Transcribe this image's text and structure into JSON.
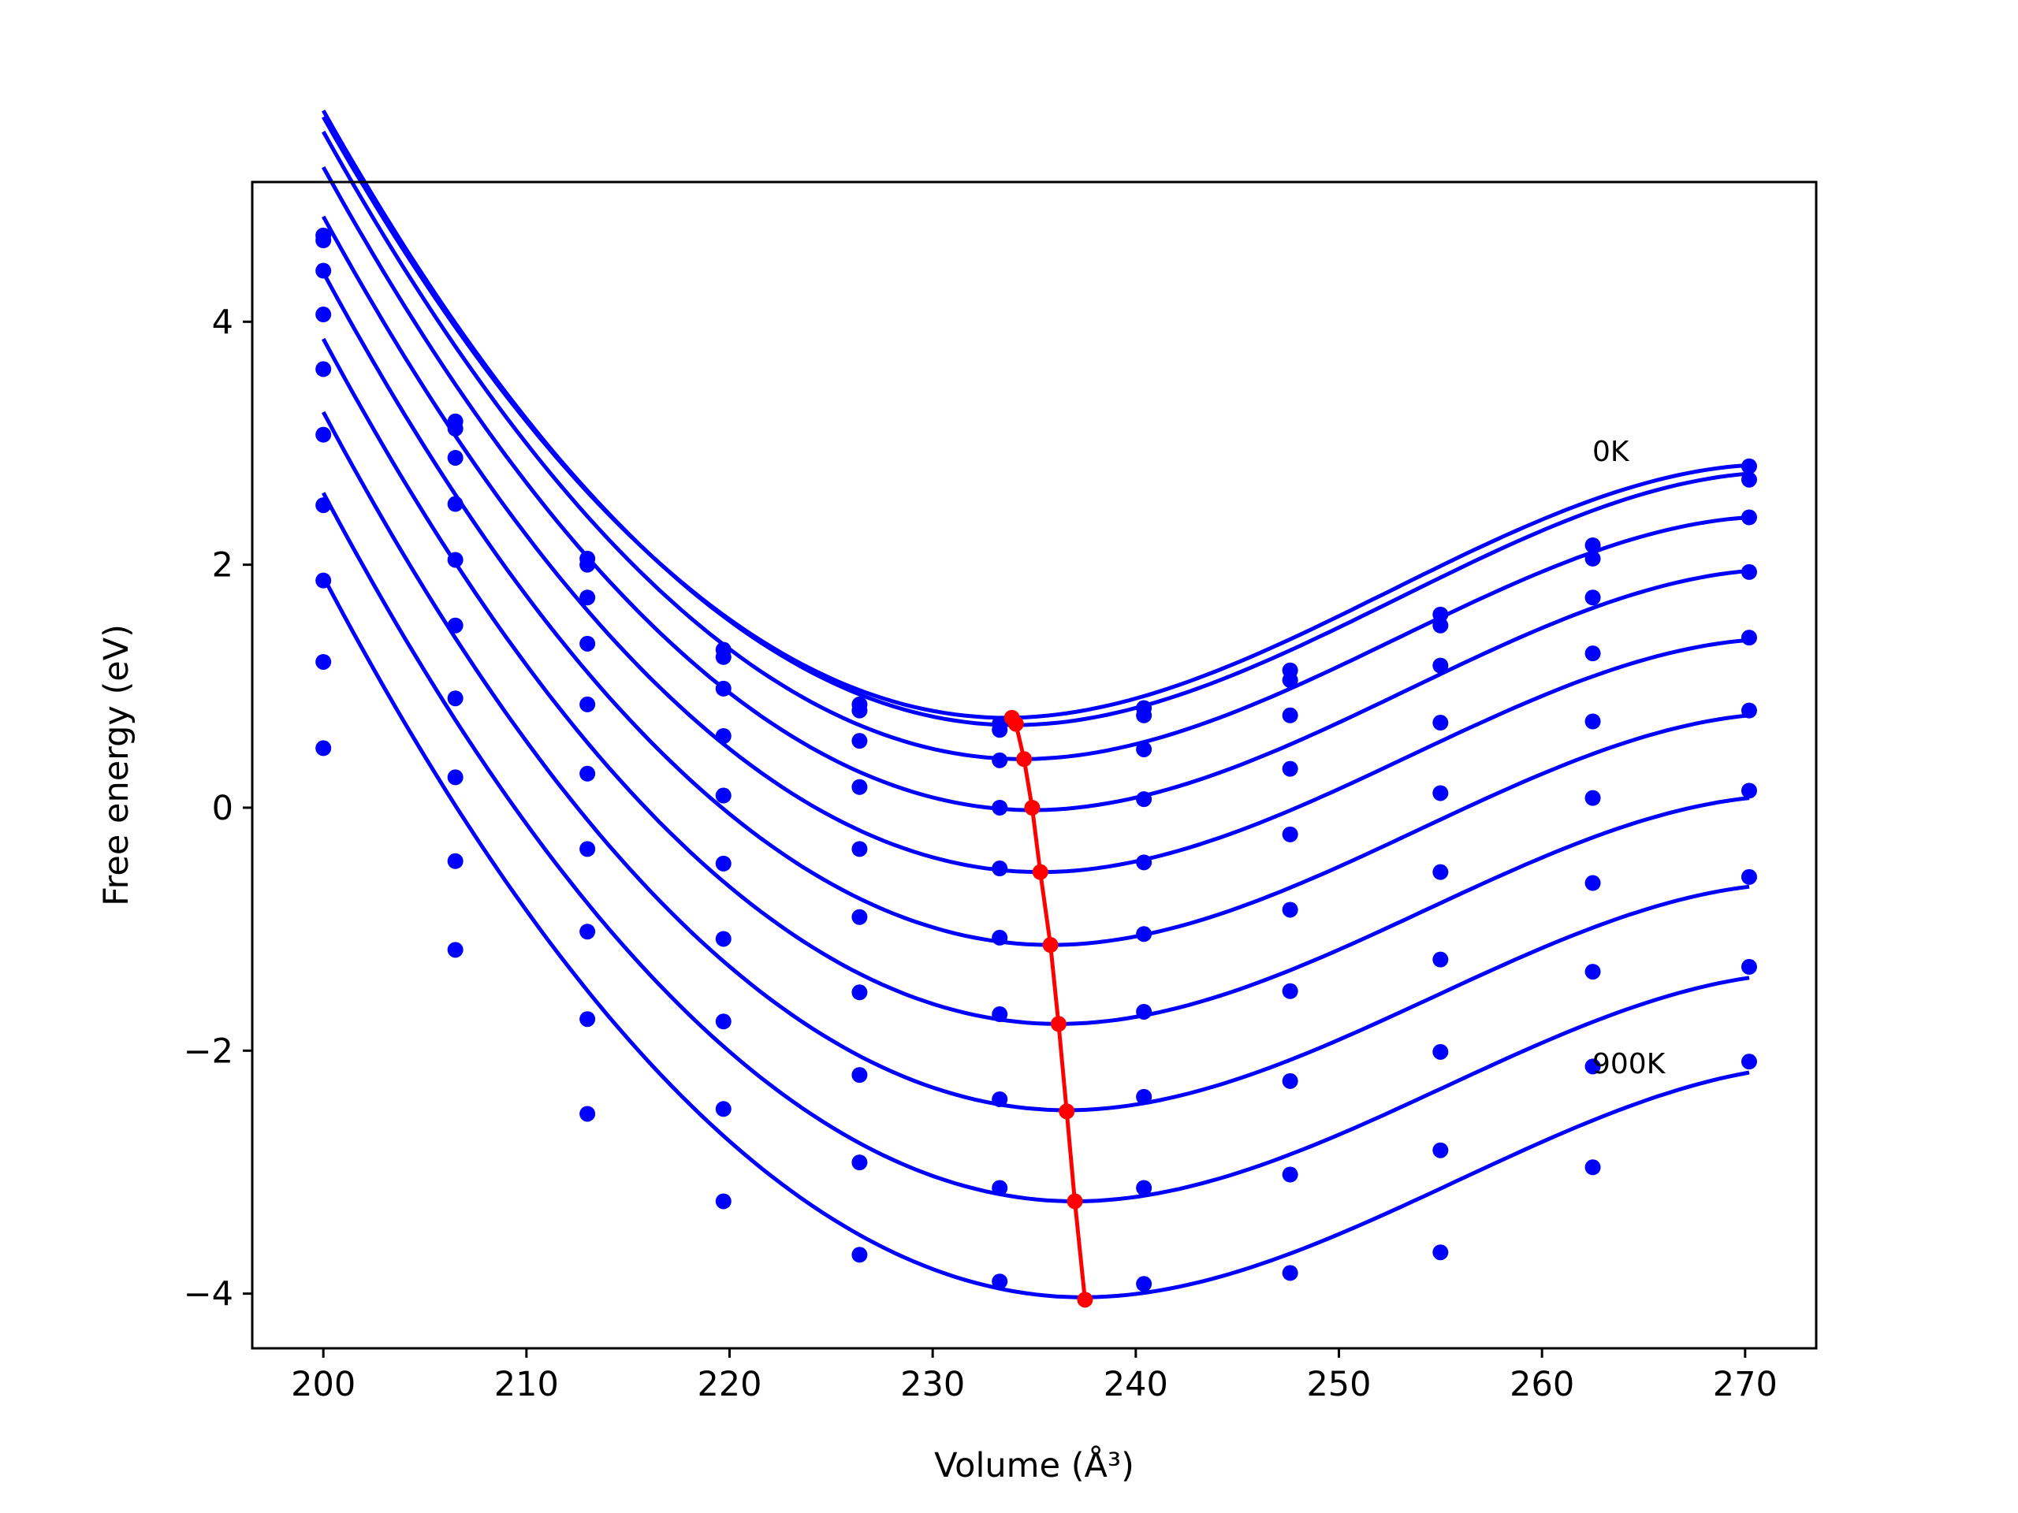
{
  "chart_data": {
    "type": "scatter",
    "xlabel": "Volume (Å³)",
    "ylabel": "Free energy (eV)",
    "xlim": [
      196.5,
      273.5
    ],
    "ylim": [
      -4.45,
      5.15
    ],
    "xticks": [
      "200",
      "210",
      "220",
      "230",
      "240",
      "250",
      "260",
      "270"
    ],
    "xtick_values": [
      200,
      210,
      220,
      230,
      240,
      250,
      260,
      270
    ],
    "yticks": [
      "−4",
      "−2",
      "0",
      "2",
      "4"
    ],
    "ytick_values": [
      -4,
      -2,
      0,
      2,
      4
    ],
    "annotations": [
      {
        "text": "0K",
        "x": 262.5,
        "y": 2.9
      },
      {
        "text": "900K",
        "x": 262.5,
        "y": -2.15
      }
    ],
    "grid": false,
    "colors": {
      "points": "#0000ff",
      "fits": "#0000ff",
      "minima": "#ff0000"
    },
    "x": [
      200.0,
      206.5,
      213.0,
      219.7,
      226.4,
      233.3,
      240.4,
      247.6,
      255.0,
      262.5,
      270.2
    ],
    "series": [
      {
        "values": [
          4.71,
          3.18,
          2.05,
          1.3,
          0.85,
          0.69,
          0.82,
          1.13,
          1.59,
          2.16,
          2.81
        ]
      },
      {
        "values": [
          4.67,
          3.12,
          2.0,
          1.24,
          0.8,
          0.64,
          0.76,
          1.05,
          1.5,
          2.05,
          2.7
        ]
      },
      {
        "values": [
          4.42,
          2.88,
          1.73,
          0.98,
          0.55,
          0.39,
          0.48,
          0.76,
          1.17,
          1.73,
          2.39
        ]
      },
      {
        "values": [
          4.06,
          2.5,
          1.35,
          0.59,
          0.17,
          0.0,
          0.07,
          0.32,
          0.7,
          1.27,
          1.94
        ]
      },
      {
        "values": [
          3.61,
          2.04,
          0.85,
          0.1,
          -0.34,
          -0.5,
          -0.45,
          -0.22,
          0.12,
          0.71,
          1.4
        ]
      },
      {
        "values": [
          3.07,
          1.5,
          0.28,
          -0.46,
          -0.9,
          -1.07,
          -1.04,
          -0.84,
          -0.53,
          0.08,
          0.8
        ]
      },
      {
        "values": [
          2.49,
          0.9,
          -0.34,
          -1.08,
          -1.52,
          -1.7,
          -1.68,
          -1.51,
          -1.25,
          -0.62,
          0.14
        ]
      },
      {
        "values": [
          1.87,
          0.25,
          -1.02,
          -1.76,
          -2.2,
          -2.4,
          -2.38,
          -2.25,
          -2.01,
          -1.35,
          -0.57
        ]
      },
      {
        "values": [
          1.2,
          -0.44,
          -1.74,
          -2.48,
          -2.92,
          -3.13,
          -3.13,
          -3.02,
          -2.82,
          -2.13,
          -1.31
        ]
      },
      {
        "values": [
          0.49,
          -1.17,
          -2.52,
          -3.24,
          -3.68,
          -3.9,
          -3.92,
          -3.83,
          -3.66,
          -2.96,
          -2.09
        ]
      }
    ],
    "fits": [
      {
        "a": 0.00438,
        "x0": 233.6,
        "e0": 0.74,
        "end": 2.82
      },
      {
        "a": 0.004375,
        "x0": 234.0,
        "e0": 0.68,
        "end": 2.75
      },
      {
        "a": 0.004364,
        "x0": 234.4,
        "e0": 0.4,
        "end": 2.39
      },
      {
        "a": 0.004345,
        "x0": 234.9,
        "e0": -0.02,
        "end": 1.95
      },
      {
        "a": 0.00433,
        "x0": 235.3,
        "e0": -0.53,
        "end": 1.38
      },
      {
        "a": 0.004318,
        "x0": 235.8,
        "e0": -1.13,
        "end": 0.76
      },
      {
        "a": 0.004303,
        "x0": 236.2,
        "e0": -1.78,
        "end": 0.08
      },
      {
        "a": 0.00429,
        "x0": 236.6,
        "e0": -2.49,
        "end": -0.65
      },
      {
        "a": 0.00426,
        "x0": 237.0,
        "e0": -3.24,
        "end": -1.4
      },
      {
        "a": 0.00424,
        "x0": 237.4,
        "e0": -4.03,
        "end": -2.18
      }
    ],
    "minima": {
      "x": [
        233.9,
        234.1,
        234.5,
        234.9,
        235.3,
        235.8,
        236.2,
        236.6,
        237.0,
        237.5
      ],
      "y": [
        0.74,
        0.69,
        0.4,
        0.0,
        -0.53,
        -1.13,
        -1.78,
        -2.5,
        -3.24,
        -4.05
      ]
    }
  }
}
